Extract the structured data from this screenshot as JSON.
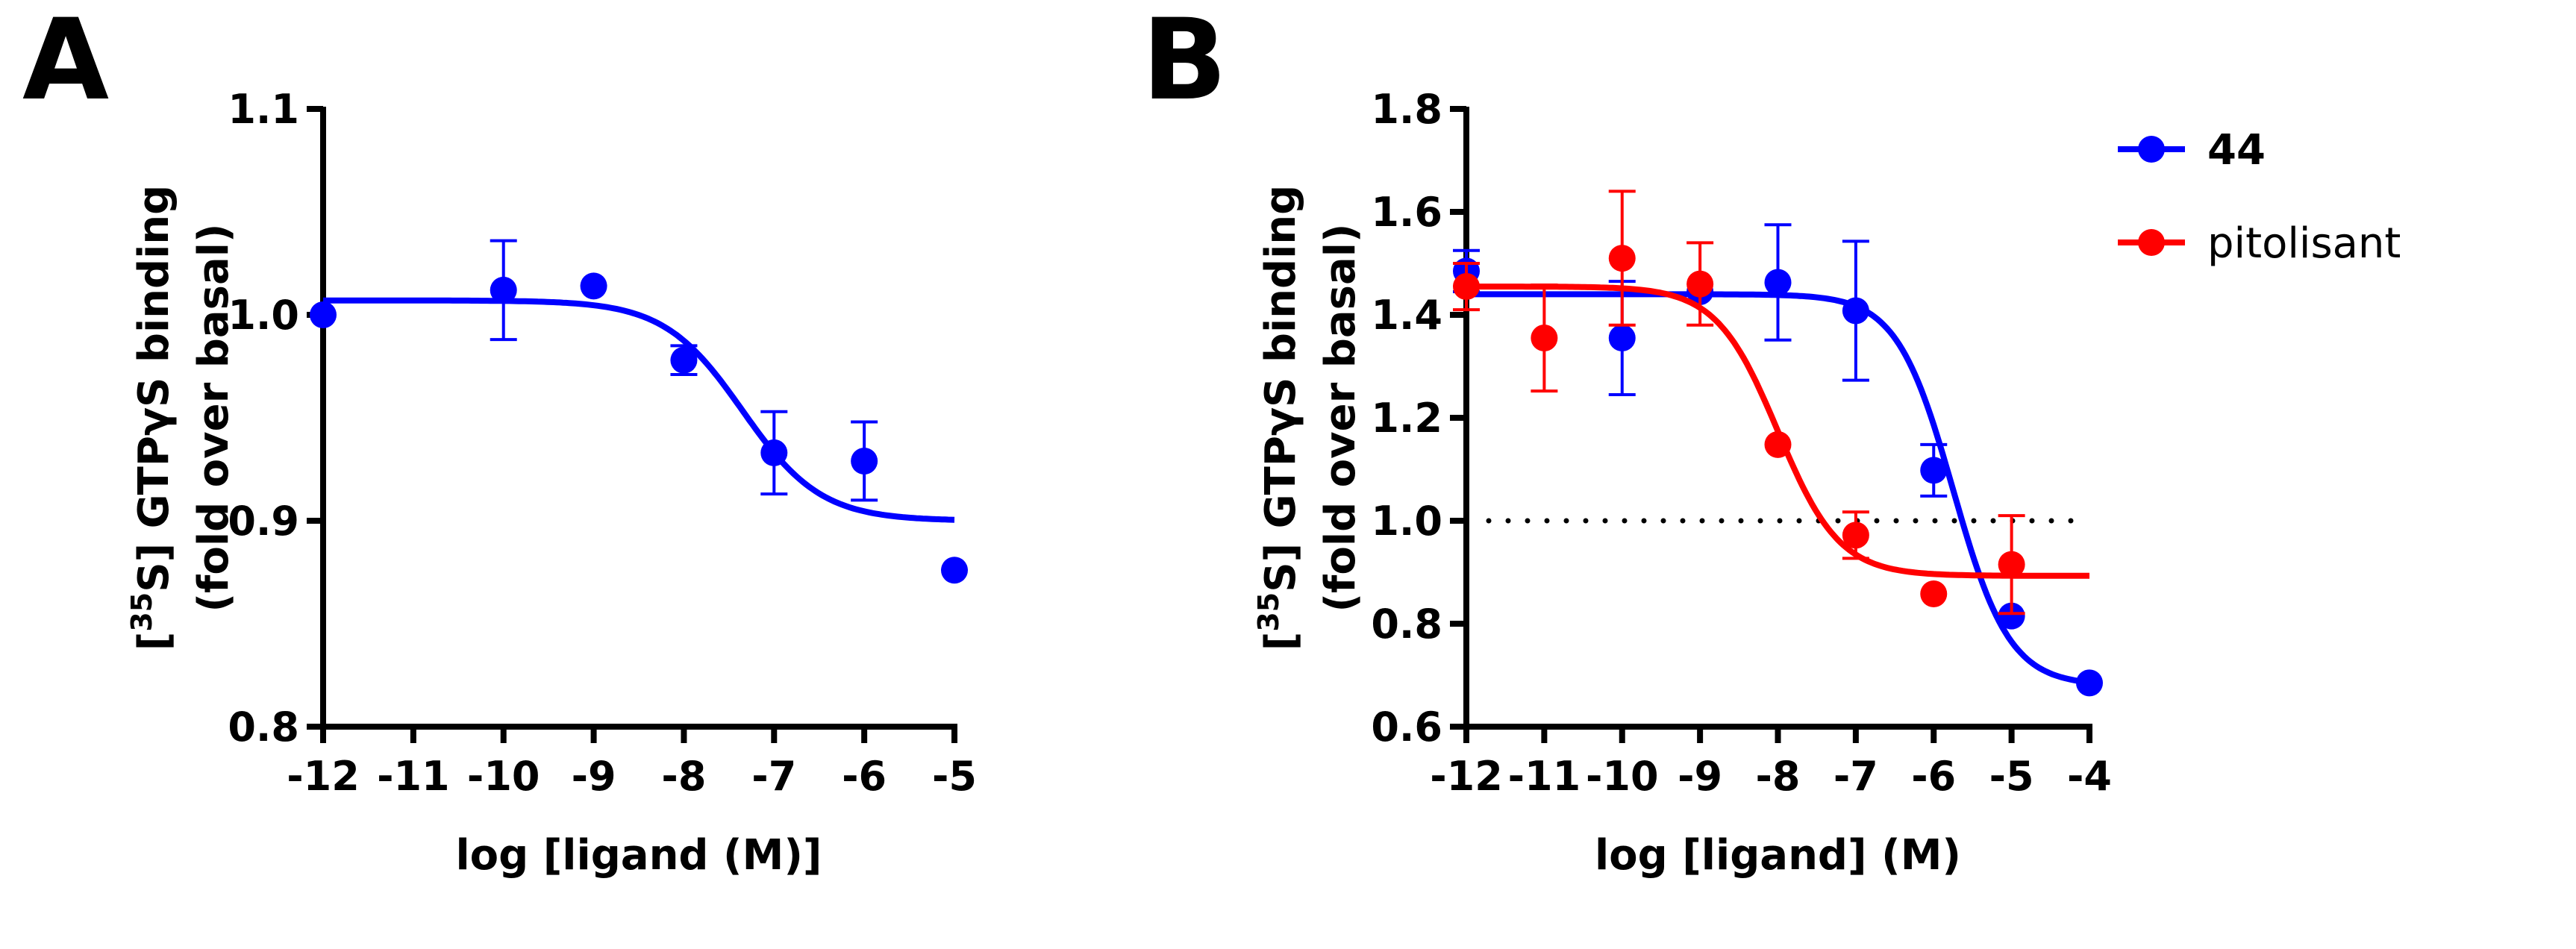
{
  "chart_data": [
    {
      "panel_label": "A",
      "type": "scatter",
      "xlabel": "log [ligand (M)]",
      "ylabel": {
        "prefix": "[",
        "sup": "35",
        "rest": "S] GTPγS binding",
        "line2": "(fold over basal)"
      },
      "xlim": [
        -12,
        -5
      ],
      "ylim": [
        0.8,
        1.1
      ],
      "xticks": [
        "-12",
        "-11",
        "-10",
        "-9",
        "-8",
        "-7",
        "-6",
        "-5"
      ],
      "yticks": [
        "0.8",
        "0.9",
        "1.0",
        "1.1"
      ],
      "reference_line": null,
      "legend": null,
      "series": [
        {
          "name": "44",
          "color": "#0000ff",
          "points": [
            {
              "x": -12,
              "y": 1.0,
              "err": 0
            },
            {
              "x": -10,
              "y": 1.012,
              "err": 0.024
            },
            {
              "x": -9,
              "y": 1.014,
              "err": 0
            },
            {
              "x": -8,
              "y": 0.978,
              "err": 0.007
            },
            {
              "x": -7,
              "y": 0.933,
              "err": 0.02
            },
            {
              "x": -6,
              "y": 0.929,
              "err": 0.019
            },
            {
              "x": -5,
              "y": 0.876,
              "err": 0
            }
          ],
          "fit": {
            "top": 1.007,
            "bottom": 0.9,
            "logIC50": -7.35,
            "hill": 1.0
          }
        }
      ]
    },
    {
      "panel_label": "B",
      "type": "scatter",
      "xlabel": "log [ligand] (M)",
      "ylabel": {
        "prefix": "[",
        "sup": "35",
        "rest": "S] GTPγS binding",
        "line2": "(fold over basal)"
      },
      "xlim": [
        -12,
        -4
      ],
      "ylim": [
        0.6,
        1.8
      ],
      "xticks": [
        "-12",
        "-11",
        "-10",
        "-9",
        "-8",
        "-7",
        "-6",
        "-5",
        "-4"
      ],
      "yticks": [
        "0.6",
        "0.8",
        "1.0",
        "1.2",
        "1.4",
        "1.6",
        "1.8"
      ],
      "reference_line": {
        "y": 1.0,
        "style": "dotted"
      },
      "legend": "top-right",
      "series": [
        {
          "name": "44",
          "color": "#0000ff",
          "points": [
            {
              "x": -12,
              "y": 1.485,
              "err": 0.04
            },
            {
              "x": -10,
              "y": 1.355,
              "err": 0.11
            },
            {
              "x": -9,
              "y": 1.445,
              "err": 0
            },
            {
              "x": -8,
              "y": 1.463,
              "err": 0.112
            },
            {
              "x": -7,
              "y": 1.408,
              "err": 0.135
            },
            {
              "x": -6,
              "y": 1.098,
              "err": 0.05
            },
            {
              "x": -5,
              "y": 0.815,
              "err": 0
            },
            {
              "x": -4,
              "y": 0.685,
              "err": 0
            }
          ],
          "fit": {
            "top": 1.44,
            "bottom": 0.68,
            "logIC50": -5.75,
            "hill": 1.2
          }
        },
        {
          "name": "pitolisant",
          "color": "#ff0000",
          "points": [
            {
              "x": -12,
              "y": 1.455,
              "err": 0.045
            },
            {
              "x": -11,
              "y": 1.355,
              "err": 0.103
            },
            {
              "x": -10,
              "y": 1.51,
              "err": 0.13
            },
            {
              "x": -9,
              "y": 1.46,
              "err": 0.08
            },
            {
              "x": -8,
              "y": 1.148,
              "err": 0
            },
            {
              "x": -7,
              "y": 0.972,
              "err": 0.045
            },
            {
              "x": -6,
              "y": 0.858,
              "err": 0
            },
            {
              "x": -5,
              "y": 0.915,
              "err": 0.095
            }
          ],
          "fit": {
            "top": 1.455,
            "bottom": 0.893,
            "logIC50": -8.0,
            "hill": 1.1
          }
        }
      ]
    }
  ]
}
